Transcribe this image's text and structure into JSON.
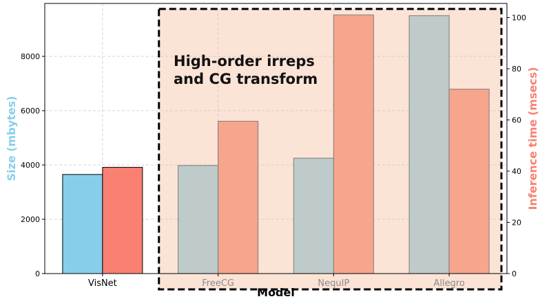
{
  "chart_data": {
    "type": "bar",
    "xlabel": "Model",
    "categories": [
      "VisNet",
      "FreeCG",
      "NequIP",
      "Allegro"
    ],
    "series": [
      {
        "axis": "left",
        "values": [
          3650,
          3980,
          4250,
          9500
        ],
        "color": "#87ceeb",
        "highlight_color": "#bfcbcb"
      },
      {
        "axis": "right",
        "values": [
          41.5,
          59.5,
          101.0,
          72.0
        ],
        "color": "#fa8072",
        "highlight_color": "#f7a58c"
      }
    ],
    "ylabel_left": "Size (mbytes)",
    "ylabel_left_color": "#87ceeb",
    "ylim_left": [
      0,
      9950
    ],
    "yticks_left": [
      0,
      2000,
      4000,
      6000,
      8000
    ],
    "ylabel_right": "Inference time (msecs)",
    "ylabel_right_color": "#fa8072",
    "ylim_right": [
      0,
      105.5
    ],
    "yticks_right": [
      0,
      20,
      40,
      60,
      80,
      100
    ],
    "grid": true,
    "highlight_region": {
      "categories": [
        "FreeCG",
        "NequIP",
        "Allegro"
      ],
      "fill": "#fbe3d6",
      "label_lines": [
        "High-order irreps",
        "and CG transform"
      ]
    }
  }
}
